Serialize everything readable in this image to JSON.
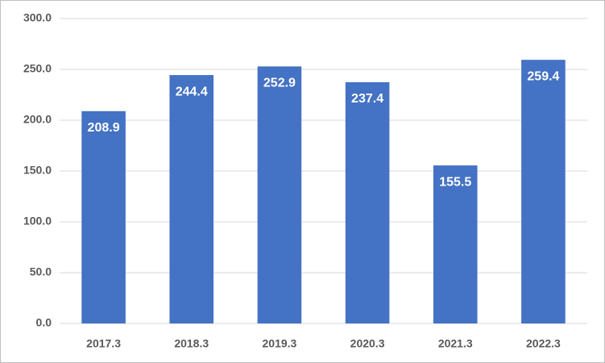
{
  "chart_data": {
    "type": "bar",
    "categories": [
      "2017.3",
      "2018.3",
      "2019.3",
      "2020.3",
      "2021.3",
      "2022.3"
    ],
    "values": [
      208.9,
      244.4,
      252.9,
      237.4,
      155.5,
      259.4
    ],
    "color": "#4472c4",
    "ylim": [
      0,
      300
    ],
    "yticks": [
      {
        "value": 0,
        "label": "0.0"
      },
      {
        "value": 50,
        "label": "50.0"
      },
      {
        "value": 100,
        "label": "100.0"
      },
      {
        "value": 150,
        "label": "150.0"
      },
      {
        "value": 200,
        "label": "200.0"
      },
      {
        "value": 250,
        "label": "250.0"
      },
      {
        "value": 300,
        "label": "300.0"
      }
    ],
    "grid": true
  }
}
